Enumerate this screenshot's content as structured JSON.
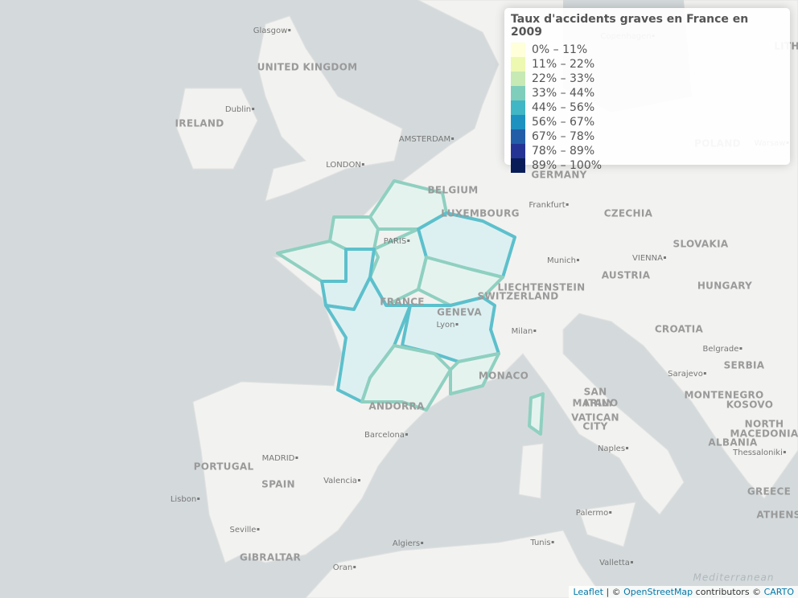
{
  "map_labels": [
    "Glasgow",
    "UNITED KINGDOM",
    "Dublin",
    "IRELAND",
    "LONDON",
    "AMSTERDAM",
    "BELGIUM",
    "LUXEMBOURG",
    "Frankfurt",
    "GERMANY",
    "CZECHIA",
    "POLAND",
    "Warsaw",
    "Copenhagen",
    "LITH",
    "PARIS",
    "FRANCE",
    "Munich",
    "VIENNA",
    "AUSTRIA",
    "SLOVAKIA",
    "HUNGARY",
    "LIECHTENSTEIN",
    "SWITZERLAND",
    "GENEVA",
    "Lyon",
    "Milan",
    "CROATIA",
    "Belgrade",
    "SERBIA",
    "SAN",
    "MARINO",
    "Sarajevo",
    "MONTENEGRO",
    "KOSOVO",
    "NORTH",
    "MACEDONIA",
    "ALBANIA",
    "Thessaloniki",
    "GREECE",
    "ATHENS",
    "MONACO",
    "ITALY",
    "VATICAN",
    "CITY",
    "ANDORRA",
    "Barcelona",
    "MADRID",
    "SPAIN",
    "PORTUGAL",
    "Lisbon",
    "Valencia",
    "Naples",
    "Palermo",
    "Seville",
    "GIBRALTAR",
    "Algiers",
    "Oran",
    "Tunis",
    "Valletta",
    "Mediterranean"
  ],
  "legend": {
    "title": "Taux d'accidents graves en France en 2009",
    "items": [
      {
        "label": "0% – 11%",
        "color": "#ffffd9"
      },
      {
        "label": "11% – 22%",
        "color": "#edf8b1"
      },
      {
        "label": "22% – 33%",
        "color": "#c7e9b4"
      },
      {
        "label": "33% – 44%",
        "color": "#7fcdbb"
      },
      {
        "label": "44% – 56%",
        "color": "#41b6c4"
      },
      {
        "label": "56% – 67%",
        "color": "#1d91c0"
      },
      {
        "label": "67% – 78%",
        "color": "#225ea8"
      },
      {
        "label": "78% – 89%",
        "color": "#253494"
      },
      {
        "label": "89% – 100%",
        "color": "#081d58"
      }
    ]
  },
  "attribution": {
    "leaflet": "Leaflet",
    "sep": "| ©",
    "osm": "OpenStreetMap",
    "contrib": "contributors ©",
    "carto": "CARTO"
  }
}
